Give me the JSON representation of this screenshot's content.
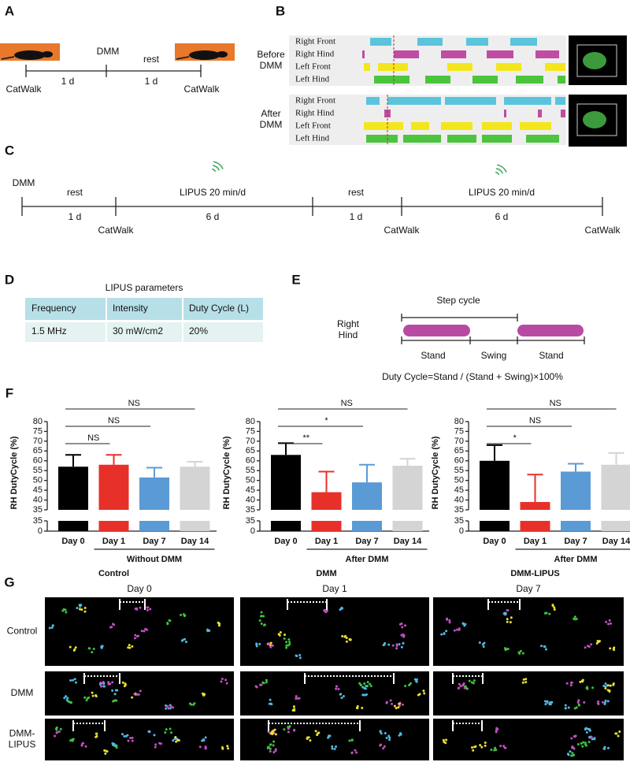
{
  "panel_labels": [
    "A",
    "B",
    "C",
    "D",
    "E",
    "F",
    "G"
  ],
  "panel_a": {
    "event": "DMM",
    "rest": "rest",
    "intervals": [
      "1 d",
      "1 d"
    ],
    "sessions": [
      "CatWalk",
      "CatWalk"
    ]
  },
  "panel_b": {
    "conditions": [
      "Before\nDMM",
      "After\nDMM"
    ],
    "limbs": [
      "Right Front",
      "Right Hind",
      "Left Front",
      "Left Hind"
    ]
  },
  "panel_c": {
    "start": "DMM",
    "phases": [
      {
        "name": "rest",
        "duration": "1 d"
      },
      {
        "name": "LIPUS 20 min/d",
        "duration": "6 d"
      },
      {
        "name": "rest",
        "duration": "1 d"
      },
      {
        "name": "LIPUS 20 min/d",
        "duration": "6 d"
      }
    ],
    "sessions": [
      "CatWalk",
      "CatWalk",
      "CatWalk"
    ]
  },
  "panel_d": {
    "title": "LIPUS parameters",
    "header": [
      "Frequency",
      "Intensity",
      "Duty Cycle (L)"
    ],
    "rows": [
      [
        "1.5 MHz",
        "30 mW/cm2",
        "20%"
      ]
    ]
  },
  "panel_e": {
    "title": "Step cycle",
    "limb": "Right\nHind",
    "phases": [
      "Stand",
      "Swing",
      "Stand"
    ],
    "formula": "Duty Cycle=Stand / (Stand + Swing)×100%"
  },
  "chart_data": [
    {
      "type": "bar",
      "title": "Control",
      "group_label": "Without DMM",
      "y_label": "RH DutyCycle (%)",
      "categories": [
        "Day 0",
        "Day 1",
        "Day 7",
        "Day 14"
      ],
      "values": [
        57,
        58,
        51.5,
        57
      ],
      "errors": [
        6,
        5,
        5,
        2.5
      ],
      "colors": [
        "#000000",
        "#e8302a",
        "#5b9bd5",
        "#d4d4d4"
      ],
      "ylim": [
        35,
        80
      ],
      "yticks": [
        35,
        40,
        45,
        50,
        55,
        60,
        65,
        70,
        75,
        80
      ],
      "ylim_lower": [
        0,
        35
      ],
      "yticks_lower": [
        0,
        35
      ],
      "annotations": [
        "NS",
        "NS",
        "NS"
      ]
    },
    {
      "type": "bar",
      "title": "DMM",
      "group_label": "After DMM",
      "y_label": "RH DutyCycle (%)",
      "categories": [
        "Day 0",
        "Day 1",
        "Day 7",
        "Day 14"
      ],
      "values": [
        63,
        44,
        49,
        57.5
      ],
      "errors": [
        6,
        10.5,
        9,
        3.5
      ],
      "colors": [
        "#000000",
        "#e8302a",
        "#5b9bd5",
        "#d4d4d4"
      ],
      "ylim": [
        35,
        80
      ],
      "yticks": [
        35,
        40,
        45,
        50,
        55,
        60,
        65,
        70,
        75,
        80
      ],
      "ylim_lower": [
        0,
        35
      ],
      "yticks_lower": [
        0,
        35
      ],
      "annotations": [
        "NS",
        "*",
        "**"
      ]
    },
    {
      "type": "bar",
      "title": "DMM-LIPUS",
      "group_label": "After DMM",
      "y_label": "RH DutyCycle (%)",
      "categories": [
        "Day 0",
        "Day 1",
        "Day 7",
        "Day 14"
      ],
      "values": [
        60,
        39,
        54.5,
        58
      ],
      "errors": [
        8,
        14,
        4,
        6
      ],
      "colors": [
        "#000000",
        "#e8302a",
        "#5b9bd5",
        "#d4d4d4"
      ],
      "ylim": [
        35,
        80
      ],
      "yticks": [
        35,
        40,
        45,
        50,
        55,
        60,
        65,
        70,
        75,
        80
      ],
      "ylim_lower": [
        0,
        35
      ],
      "yticks_lower": [
        0,
        35
      ],
      "annotations": [
        "NS",
        "NS",
        "*"
      ]
    }
  ],
  "panel_g": {
    "columns": [
      "Day 0",
      "Day 1",
      "Day 7"
    ],
    "rows": [
      "Control",
      "DMM",
      "DMM-\nLIPUS"
    ]
  }
}
